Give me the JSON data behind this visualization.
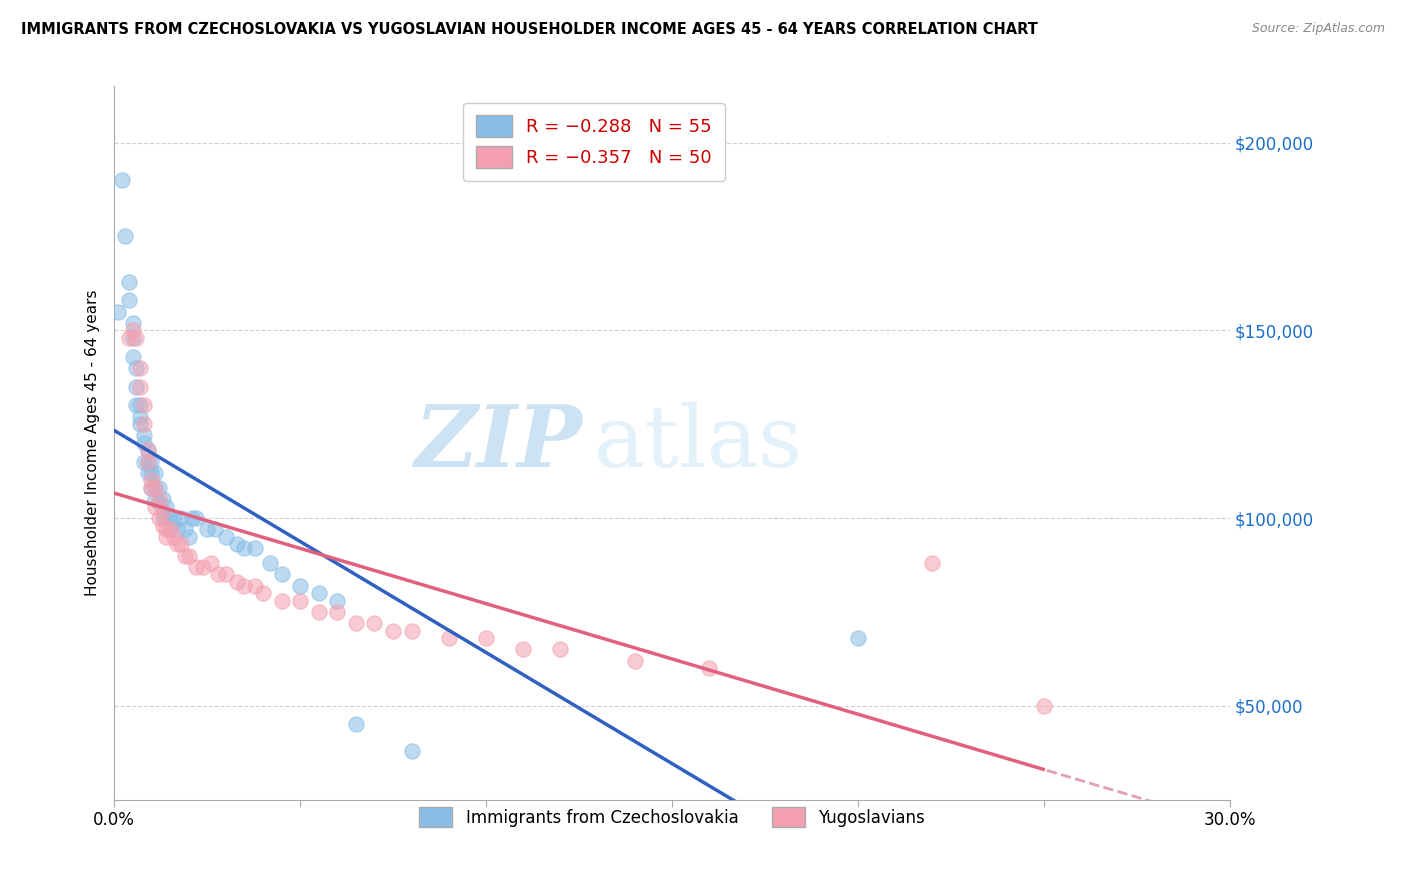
{
  "title": "IMMIGRANTS FROM CZECHOSLOVAKIA VS YUGOSLAVIAN HOUSEHOLDER INCOME AGES 45 - 64 YEARS CORRELATION CHART",
  "source": "Source: ZipAtlas.com",
  "ylabel": "Householder Income Ages 45 - 64 years",
  "xlim": [
    0.0,
    0.3
  ],
  "ylim": [
    25000,
    215000
  ],
  "ytick_values": [
    50000,
    100000,
    150000,
    200000
  ],
  "ytick_labels": [
    "$50,000",
    "$100,000",
    "$150,000",
    "$200,000"
  ],
  "legend_r1": "R = -0.288",
  "legend_n1": "N = 55",
  "legend_r2": "R = -0.357",
  "legend_n2": "N = 50",
  "color_czech": "#88bde6",
  "color_yugo": "#f4a0b0",
  "color_czech_line": "#3060c0",
  "color_yugo_line": "#e06080",
  "color_czech_dash": "#a0c8e8",
  "color_yugo_dash": "#e0a0b0",
  "watermark_zip": "ZIP",
  "watermark_atlas": "atlas",
  "czech_x": [
    0.001,
    0.002,
    0.003,
    0.004,
    0.004,
    0.005,
    0.005,
    0.005,
    0.006,
    0.006,
    0.006,
    0.007,
    0.007,
    0.007,
    0.008,
    0.008,
    0.008,
    0.009,
    0.009,
    0.009,
    0.01,
    0.01,
    0.01,
    0.011,
    0.011,
    0.011,
    0.012,
    0.012,
    0.013,
    0.013,
    0.014,
    0.014,
    0.015,
    0.015,
    0.016,
    0.017,
    0.018,
    0.019,
    0.02,
    0.021,
    0.022,
    0.025,
    0.027,
    0.03,
    0.033,
    0.035,
    0.038,
    0.042,
    0.045,
    0.05,
    0.055,
    0.06,
    0.065,
    0.08,
    0.2
  ],
  "czech_y": [
    155000,
    190000,
    175000,
    163000,
    158000,
    152000,
    148000,
    143000,
    140000,
    135000,
    130000,
    130000,
    127000,
    125000,
    122000,
    120000,
    115000,
    118000,
    115000,
    112000,
    115000,
    112000,
    108000,
    112000,
    108000,
    105000,
    108000,
    104000,
    105000,
    100000,
    103000,
    100000,
    100000,
    97000,
    100000,
    97000,
    100000,
    97000,
    95000,
    100000,
    100000,
    97000,
    97000,
    95000,
    93000,
    92000,
    92000,
    88000,
    85000,
    82000,
    80000,
    78000,
    45000,
    38000,
    68000
  ],
  "yugo_x": [
    0.004,
    0.005,
    0.006,
    0.007,
    0.007,
    0.008,
    0.008,
    0.009,
    0.009,
    0.01,
    0.01,
    0.011,
    0.011,
    0.012,
    0.012,
    0.013,
    0.013,
    0.014,
    0.014,
    0.015,
    0.016,
    0.017,
    0.018,
    0.019,
    0.02,
    0.022,
    0.024,
    0.026,
    0.028,
    0.03,
    0.033,
    0.035,
    0.038,
    0.04,
    0.045,
    0.05,
    0.055,
    0.06,
    0.065,
    0.07,
    0.075,
    0.08,
    0.09,
    0.1,
    0.11,
    0.12,
    0.14,
    0.16,
    0.22,
    0.25
  ],
  "yugo_y": [
    148000,
    150000,
    148000,
    140000,
    135000,
    130000,
    125000,
    118000,
    115000,
    110000,
    108000,
    108000,
    103000,
    105000,
    100000,
    102000,
    98000,
    97000,
    95000,
    97000,
    95000,
    93000,
    93000,
    90000,
    90000,
    87000,
    87000,
    88000,
    85000,
    85000,
    83000,
    82000,
    82000,
    80000,
    78000,
    78000,
    75000,
    75000,
    72000,
    72000,
    70000,
    70000,
    68000,
    68000,
    65000,
    65000,
    62000,
    60000,
    88000,
    50000
  ]
}
